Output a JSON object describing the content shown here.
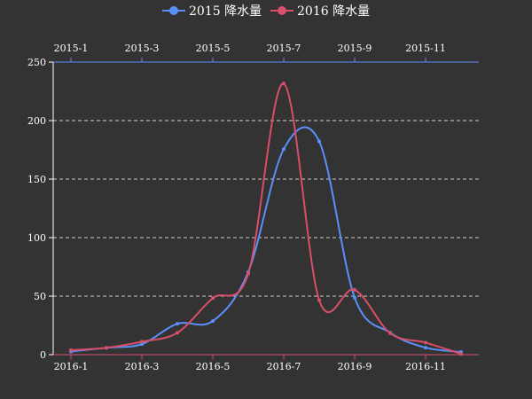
{
  "chart_data": {
    "type": "line",
    "legend": {
      "position": "top-center"
    },
    "series": [
      {
        "name": "2015 降水量",
        "color": "#5b8ff9",
        "axis": "top",
        "x": [
          "2015-1",
          "2015-2",
          "2015-3",
          "2015-4",
          "2015-5",
          "2015-6",
          "2015-7",
          "2015-8",
          "2015-9",
          "2015-10",
          "2015-11",
          "2015-12"
        ],
        "values": [
          2.6,
          5.9,
          9.0,
          26.4,
          28.7,
          70.7,
          175.6,
          182.2,
          48.7,
          18.8,
          6.0,
          2.3
        ]
      },
      {
        "name": "2016 降水量",
        "color": "#d94e68",
        "axis": "bottom",
        "x": [
          "2016-1",
          "2016-2",
          "2016-3",
          "2016-4",
          "2016-5",
          "2016-6",
          "2016-7",
          "2016-8",
          "2016-9",
          "2016-10",
          "2016-11",
          "2016-12"
        ],
        "values": [
          3.9,
          5.9,
          11.1,
          18.7,
          48.3,
          69.2,
          231.6,
          46.6,
          55.4,
          18.4,
          10.3,
          0.7
        ]
      }
    ],
    "x_top_ticks": [
      "2015-1",
      "2015-3",
      "2015-5",
      "2015-7",
      "2015-9",
      "2015-11"
    ],
    "x_bottom_ticks": [
      "2016-1",
      "2016-3",
      "2016-5",
      "2016-7",
      "2016-9",
      "2016-11"
    ],
    "y_ticks": [
      "0",
      "50",
      "100",
      "150",
      "200",
      "250"
    ],
    "ylim": [
      0,
      250
    ],
    "grid": true
  }
}
